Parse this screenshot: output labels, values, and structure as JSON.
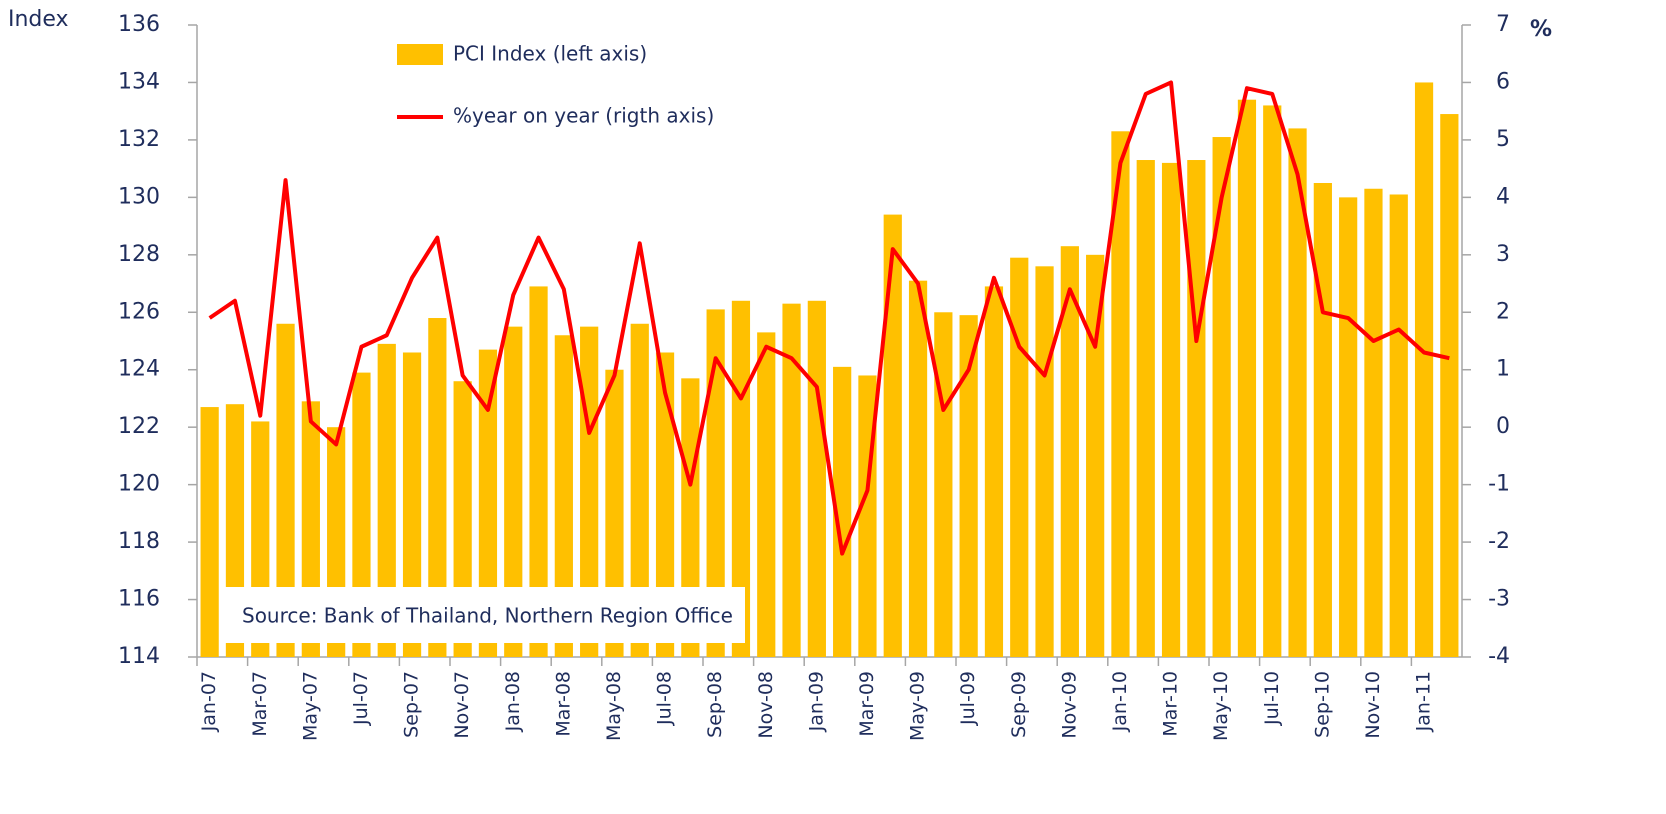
{
  "chart_data": {
    "type": "bar",
    "y_label": "Index",
    "y2_label": "%",
    "annotation": "Source: Bank of Thailand, Northern Region Office",
    "categories": [
      "Jan-07",
      null,
      "Mar-07",
      null,
      "May-07",
      null,
      "Jul-07",
      null,
      "Sep-07",
      null,
      "Nov-07",
      null,
      "Jan-08",
      null,
      "Mar-08",
      null,
      "May-08",
      null,
      "Jul-08",
      null,
      "Sep-08",
      null,
      "Nov-08",
      null,
      "Jan-09",
      null,
      "Mar-09",
      null,
      "May-09",
      null,
      "Jul-09",
      null,
      "Sep-09",
      null,
      "Nov-09",
      null,
      "Jan-10",
      null,
      "Mar-10",
      null,
      "May-10",
      null,
      "Jul-10",
      null,
      "Sep-10",
      null,
      "Nov-10",
      null,
      "Jan-11",
      null
    ],
    "series": [
      {
        "name": "PCI Index (left axis)",
        "type": "bar",
        "color": "#ffc000",
        "values": [
          122.7,
          122.8,
          122.2,
          125.6,
          122.9,
          122.0,
          123.9,
          124.9,
          124.6,
          125.8,
          123.6,
          124.7,
          125.5,
          126.9,
          125.2,
          125.5,
          124.0,
          125.6,
          124.6,
          123.7,
          126.1,
          126.4,
          125.3,
          126.3,
          126.4,
          124.1,
          123.8,
          129.4,
          127.1,
          126.0,
          125.9,
          126.9,
          127.9,
          127.6,
          128.3,
          128.0,
          132.3,
          131.3,
          131.2,
          131.3,
          132.1,
          133.4,
          133.2,
          132.4,
          130.5,
          130.0,
          130.3,
          130.1,
          134.0,
          132.9
        ]
      },
      {
        "name": "%year on year (rigth axis)",
        "type": "line",
        "axis": "y2",
        "color": "#ff0000",
        "values": [
          1.9,
          2.2,
          0.2,
          4.3,
          0.1,
          -0.3,
          1.4,
          1.6,
          2.6,
          3.3,
          0.9,
          0.3,
          2.3,
          3.3,
          2.4,
          -0.1,
          0.9,
          3.2,
          0.6,
          -1.0,
          1.2,
          0.5,
          1.4,
          1.2,
          0.7,
          -2.2,
          -1.1,
          3.1,
          2.5,
          0.3,
          1.0,
          2.6,
          1.4,
          0.9,
          2.4,
          1.4,
          4.6,
          5.8,
          6.0,
          1.5,
          4.0,
          5.9,
          5.8,
          4.4,
          2.0,
          1.9,
          1.5,
          1.7,
          1.3,
          1.2
        ]
      }
    ],
    "ylim": [
      114,
      136
    ],
    "yticks": [
      114,
      116,
      118,
      120,
      122,
      124,
      126,
      128,
      130,
      132,
      134,
      136
    ],
    "y2lim": [
      -4,
      7
    ],
    "y2ticks": [
      -4,
      -3,
      -2,
      -1,
      0,
      1,
      2,
      3,
      4,
      5,
      6,
      7
    ],
    "grid": false
  }
}
